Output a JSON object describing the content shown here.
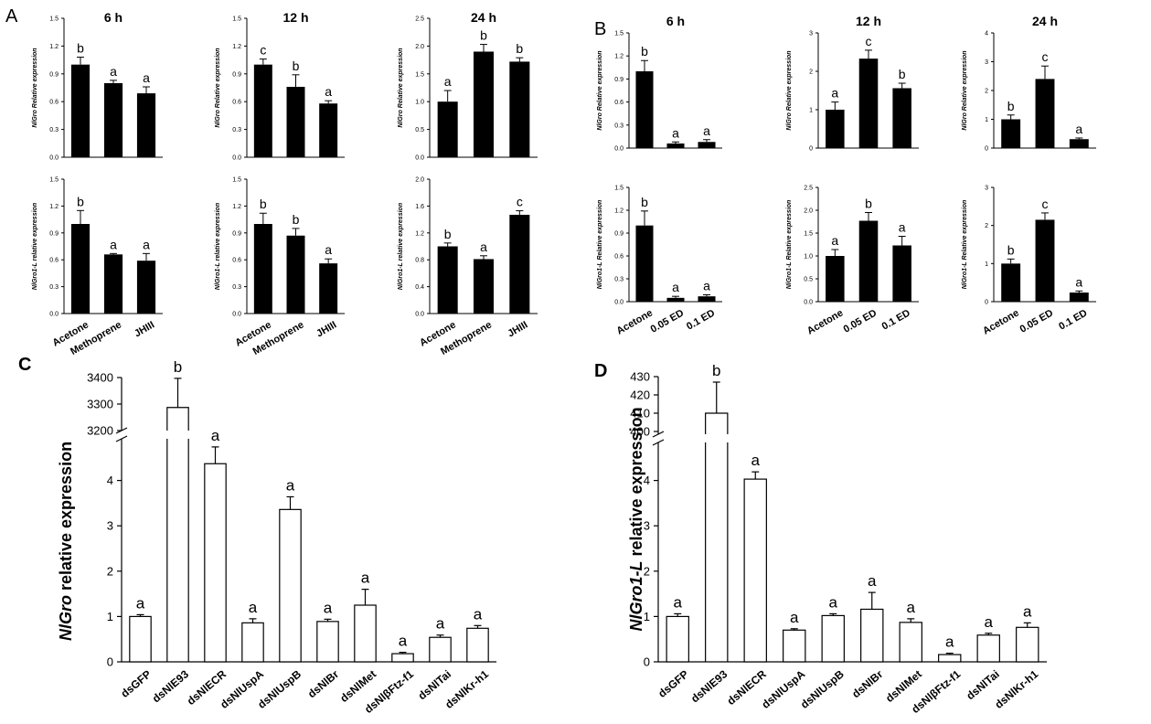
{
  "panels": {
    "a": "A",
    "b": "B",
    "c": "C",
    "d": "D"
  },
  "chart_data": [
    {
      "id": "A-6h-Gro",
      "panel": "A",
      "type": "bar",
      "title": "6 h",
      "ylabel": "NlGro Relative expression",
      "categories": [
        "Acetone",
        "Methoprene",
        "JHIII"
      ],
      "values": [
        1.0,
        0.8,
        0.69
      ],
      "errors": [
        0.08,
        0.03,
        0.07
      ],
      "letters": [
        "b",
        "a",
        "a"
      ],
      "ylim": [
        0,
        1.5
      ],
      "yticks": [
        "0.0",
        "0.3",
        "0.6",
        "0.9",
        "1.2",
        "1.5"
      ],
      "show_xlabels": false
    },
    {
      "id": "A-12h-Gro",
      "panel": "A",
      "type": "bar",
      "title": "12 h",
      "ylabel": "NlGro Relative expression",
      "categories": [
        "Acetone",
        "Methoprene",
        "JHIII"
      ],
      "values": [
        1.0,
        0.76,
        0.58
      ],
      "errors": [
        0.06,
        0.13,
        0.03
      ],
      "letters": [
        "c",
        "b",
        "a"
      ],
      "ylim": [
        0,
        1.5
      ],
      "yticks": [
        "0.0",
        "0.3",
        "0.6",
        "0.9",
        "1.2",
        "1.5"
      ],
      "show_xlabels": false
    },
    {
      "id": "A-24h-Gro",
      "panel": "A",
      "type": "bar",
      "title": "24 h",
      "ylabel": "NlGro Relative expression",
      "categories": [
        "Acetone",
        "Methoprene",
        "JHIII"
      ],
      "values": [
        1.0,
        1.9,
        1.72
      ],
      "errors": [
        0.2,
        0.13,
        0.07
      ],
      "letters": [
        "a",
        "b",
        "b"
      ],
      "ylim": [
        0,
        2.5
      ],
      "yticks": [
        "0.0",
        "0.5",
        "1.0",
        "1.5",
        "2.0",
        "2.5"
      ],
      "show_xlabels": false
    },
    {
      "id": "A-6h-Gro1L",
      "panel": "A",
      "type": "bar",
      "title": "",
      "ylabel": "NlGro1-L relative expression",
      "categories": [
        "Acetone",
        "Methoprene",
        "JHIII"
      ],
      "values": [
        1.0,
        0.66,
        0.59
      ],
      "errors": [
        0.15,
        0.01,
        0.08
      ],
      "letters": [
        "b",
        "a",
        "a"
      ],
      "ylim": [
        0,
        1.5
      ],
      "yticks": [
        "0.0",
        "0.3",
        "0.6",
        "0.9",
        "1.2",
        "1.5"
      ],
      "show_xlabels": true
    },
    {
      "id": "A-12h-Gro1L",
      "panel": "A",
      "type": "bar",
      "title": "",
      "ylabel": "NlGro1-L relative expression",
      "categories": [
        "Acetone",
        "Methoprene",
        "JHIII"
      ],
      "values": [
        1.0,
        0.87,
        0.56
      ],
      "errors": [
        0.12,
        0.08,
        0.05
      ],
      "letters": [
        "b",
        "b",
        "a"
      ],
      "ylim": [
        0,
        1.5
      ],
      "yticks": [
        "0.0",
        "0.3",
        "0.6",
        "0.9",
        "1.2",
        "1.5"
      ],
      "show_xlabels": true
    },
    {
      "id": "A-24h-Gro1L",
      "panel": "A",
      "type": "bar",
      "title": "",
      "ylabel": "NlGro1-L relative expression",
      "categories": [
        "Acetone",
        "Methoprene",
        "JHIII"
      ],
      "values": [
        1.0,
        0.81,
        1.47
      ],
      "errors": [
        0.05,
        0.05,
        0.06
      ],
      "letters": [
        "b",
        "a",
        "c"
      ],
      "ylim": [
        0,
        2.0
      ],
      "yticks": [
        "0.0",
        "0.4",
        "0.8",
        "1.2",
        "1.6",
        "2.0"
      ],
      "show_xlabels": true
    },
    {
      "id": "B-6h-Gro",
      "panel": "B",
      "type": "bar",
      "title": "6 h",
      "ylabel": "NlGro Relative expression",
      "categories": [
        "Acetone",
        "0.05 ED",
        "0.1 ED"
      ],
      "values": [
        1.0,
        0.06,
        0.08
      ],
      "errors": [
        0.14,
        0.02,
        0.03
      ],
      "letters": [
        "b",
        "a",
        "a"
      ],
      "ylim": [
        0,
        1.5
      ],
      "yticks": [
        "0.0",
        "0.3",
        "0.6",
        "0.9",
        "1.2",
        "1.5"
      ],
      "show_xlabels": false
    },
    {
      "id": "B-12h-Gro",
      "panel": "B",
      "type": "bar",
      "title": "12 h",
      "ylabel": "NlGro Relative expression",
      "categories": [
        "Acetone",
        "0.05 ED",
        "0.1 ED"
      ],
      "values": [
        1.0,
        2.33,
        1.56
      ],
      "errors": [
        0.2,
        0.22,
        0.13
      ],
      "letters": [
        "a",
        "c",
        "b"
      ],
      "ylim": [
        0,
        3
      ],
      "yticks": [
        "0",
        "1",
        "2",
        "3"
      ],
      "show_xlabels": false
    },
    {
      "id": "B-24h-Gro",
      "panel": "B",
      "type": "bar",
      "title": "24 h",
      "ylabel": "NlGro Relative expression",
      "categories": [
        "Acetone",
        "0.05 ED",
        "0.1 ED"
      ],
      "values": [
        1.0,
        2.4,
        0.31
      ],
      "errors": [
        0.15,
        0.45,
        0.04
      ],
      "letters": [
        "b",
        "c",
        "a"
      ],
      "ylim": [
        0,
        4
      ],
      "yticks": [
        "0",
        "1",
        "2",
        "3",
        "4"
      ],
      "show_xlabels": false
    },
    {
      "id": "B-6h-Gro1L",
      "panel": "B",
      "type": "bar",
      "title": "",
      "ylabel": "NlGro1-L Relative expression",
      "categories": [
        "Acetone",
        "0.05 ED",
        "0.1 ED"
      ],
      "values": [
        1.0,
        0.05,
        0.07
      ],
      "errors": [
        0.19,
        0.02,
        0.02
      ],
      "letters": [
        "b",
        "a",
        "a"
      ],
      "ylim": [
        0,
        1.5
      ],
      "yticks": [
        "0.0",
        "0.3",
        "0.6",
        "0.9",
        "1.2",
        "1.5"
      ],
      "show_xlabels": true
    },
    {
      "id": "B-12h-Gro1L",
      "panel": "B",
      "type": "bar",
      "title": "",
      "ylabel": "NlGro1-L Relative expression",
      "categories": [
        "Acetone",
        "0.05 ED",
        "0.1 ED"
      ],
      "values": [
        1.0,
        1.77,
        1.23
      ],
      "errors": [
        0.14,
        0.18,
        0.2
      ],
      "letters": [
        "a",
        "b",
        "a"
      ],
      "ylim": [
        0,
        2.5
      ],
      "yticks": [
        "0.0",
        "0.5",
        "1.0",
        "1.5",
        "2.0",
        "2.5"
      ],
      "show_xlabels": true
    },
    {
      "id": "B-24h-Gro1L",
      "panel": "B",
      "type": "bar",
      "title": "",
      "ylabel": "NlGro1-L Relative expression",
      "categories": [
        "Acetone",
        "0.05 ED",
        "0.1 ED"
      ],
      "values": [
        1.0,
        2.15,
        0.24
      ],
      "errors": [
        0.12,
        0.18,
        0.04
      ],
      "letters": [
        "b",
        "c",
        "a"
      ],
      "ylim": [
        0,
        3
      ],
      "yticks": [
        "0",
        "1",
        "2",
        "3"
      ],
      "show_xlabels": true
    },
    {
      "id": "C",
      "panel": "C",
      "type": "bar",
      "title": "",
      "ylabel": "NlGro relative expression",
      "ylabel_italic_part": "NlGro",
      "ylabel_rest": " relative expression",
      "categories": [
        "dsGFP",
        "dsNlE93",
        "dsNlECR",
        "dsNlUspA",
        "dsNlUspB",
        "dsNlBr",
        "dsNlMet",
        "dsNlβFtz-f1",
        "dsNlTai",
        "dsNlKr-h1"
      ],
      "values": [
        1.0,
        3287,
        4.37,
        0.86,
        3.36,
        0.89,
        1.25,
        0.18,
        0.54,
        0.74
      ],
      "errors": [
        0.04,
        110,
        0.37,
        0.09,
        0.28,
        0.05,
        0.35,
        0.03,
        0.05,
        0.06
      ],
      "letters": [
        "a",
        "b",
        "a",
        "a",
        "a",
        "a",
        "a",
        "a",
        "a",
        "a"
      ],
      "y_break": true,
      "lower_range": [
        0,
        5
      ],
      "lower_ticks": [
        "0",
        "1",
        "2",
        "3",
        "4"
      ],
      "upper_range": [
        3200,
        3400
      ],
      "upper_ticks": [
        "3200",
        "3300",
        "3400"
      ]
    },
    {
      "id": "D",
      "panel": "D",
      "type": "bar",
      "title": "",
      "ylabel": "NlGro1-L relative expression",
      "ylabel_italic_part": "NlGro1-L",
      "ylabel_rest": " relative expression",
      "categories": [
        "dsGFP",
        "dsNlE93",
        "dsNlECR",
        "dsNlUspA",
        "dsNlUspB",
        "dsNlBr",
        "dsNlMet",
        "dsNlβFtz-f1",
        "dsNlTai",
        "dsNlKr-h1"
      ],
      "values": [
        1.0,
        410,
        4.03,
        0.7,
        1.02,
        1.16,
        0.87,
        0.16,
        0.59,
        0.76
      ],
      "errors": [
        0.06,
        17,
        0.16,
        0.03,
        0.04,
        0.37,
        0.08,
        0.03,
        0.04,
        0.1
      ],
      "letters": [
        "a",
        "b",
        "a",
        "a",
        "a",
        "a",
        "a",
        "a",
        "a",
        "a"
      ],
      "y_break": true,
      "lower_range": [
        0,
        5
      ],
      "lower_ticks": [
        "0",
        "1",
        "2",
        "3",
        "4"
      ],
      "upper_range": [
        400,
        430
      ],
      "upper_ticks": [
        "400",
        "410",
        "420",
        "430"
      ]
    }
  ]
}
